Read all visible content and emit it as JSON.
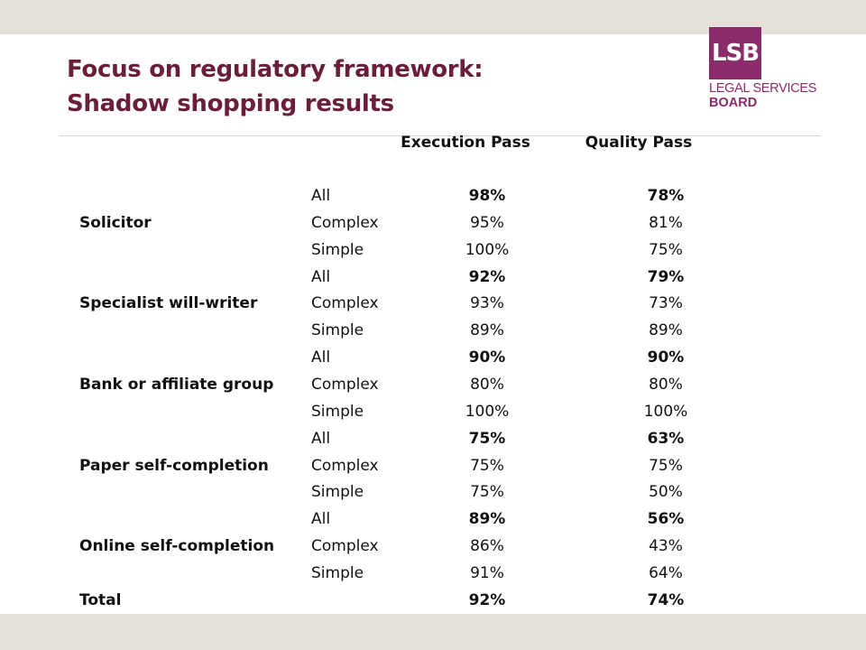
{
  "title": {
    "line1": "Focus on regulatory framework:",
    "line2": "Shadow shopping results"
  },
  "logo": {
    "mark": "LSB",
    "line1": "LEGAL SERVICES",
    "line2": "BOARD",
    "color": "#8c2b6a"
  },
  "table": {
    "headers": {
      "execution": "Execution Pass",
      "quality": "Quality Pass"
    },
    "groups": [
      {
        "label": "Solicitor",
        "rows": [
          {
            "type": "All",
            "execution": "98%",
            "quality": "78%"
          },
          {
            "type": "Complex",
            "execution": "95%",
            "quality": "81%"
          },
          {
            "type": "Simple",
            "execution": "100%",
            "quality": "75%"
          }
        ]
      },
      {
        "label": "Specialist will-writer",
        "rows": [
          {
            "type": "All",
            "execution": "92%",
            "quality": "79%"
          },
          {
            "type": "Complex",
            "execution": "93%",
            "quality": "73%"
          },
          {
            "type": "Simple",
            "execution": "89%",
            "quality": "89%"
          }
        ]
      },
      {
        "label": "Bank or affiliate group",
        "rows": [
          {
            "type": "All",
            "execution": "90%",
            "quality": "90%"
          },
          {
            "type": "Complex",
            "execution": "80%",
            "quality": "80%"
          },
          {
            "type": "Simple",
            "execution": "100%",
            "quality": "100%"
          }
        ]
      },
      {
        "label": "Paper self-completion",
        "rows": [
          {
            "type": "All",
            "execution": "75%",
            "quality": "63%"
          },
          {
            "type": "Complex",
            "execution": "75%",
            "quality": "75%"
          },
          {
            "type": "Simple",
            "execution": "75%",
            "quality": "50%"
          }
        ]
      },
      {
        "label": "Online self-completion",
        "rows": [
          {
            "type": "All",
            "execution": "89%",
            "quality": "56%"
          },
          {
            "type": "Complex",
            "execution": "86%",
            "quality": "43%"
          },
          {
            "type": "Simple",
            "execution": "91%",
            "quality": "64%"
          }
        ]
      }
    ],
    "total": {
      "label": "Total",
      "execution": "92%",
      "quality": "74%"
    }
  }
}
